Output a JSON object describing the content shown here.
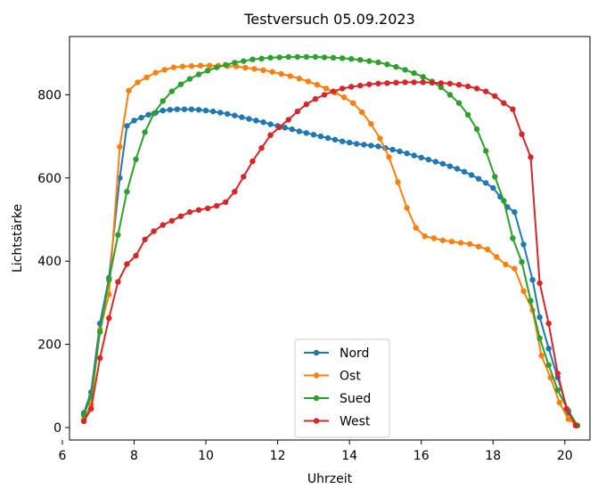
{
  "chart_data": {
    "type": "line",
    "title": "Testversuch 05.09.2023",
    "xlabel": "Uhrzeit",
    "ylabel": "Lichtstärke",
    "xlim": [
      6.2,
      20.7
    ],
    "ylim": [
      -30,
      940
    ],
    "xticks": [
      6,
      8,
      10,
      12,
      14,
      16,
      18,
      20
    ],
    "yticks": [
      0,
      200,
      400,
      600,
      800
    ],
    "grid": false,
    "legend": {
      "placement": "bottom-center"
    },
    "series": [
      {
        "name": "Nord",
        "color": "#1f77b4",
        "points": [
          [
            6.6,
            35
          ],
          [
            6.8,
            85
          ],
          [
            7.05,
            250
          ],
          [
            7.3,
            360
          ],
          [
            7.6,
            600
          ],
          [
            7.8,
            725
          ],
          [
            8.0,
            738
          ],
          [
            8.2,
            745
          ],
          [
            8.4,
            752
          ],
          [
            8.6,
            757
          ],
          [
            8.8,
            762
          ],
          [
            9.0,
            764
          ],
          [
            9.2,
            765
          ],
          [
            9.4,
            765
          ],
          [
            9.6,
            765
          ],
          [
            9.8,
            764
          ],
          [
            10.0,
            762
          ],
          [
            10.2,
            760
          ],
          [
            10.4,
            757
          ],
          [
            10.6,
            754
          ],
          [
            10.8,
            750
          ],
          [
            11.0,
            746
          ],
          [
            11.2,
            742
          ],
          [
            11.4,
            738
          ],
          [
            11.6,
            734
          ],
          [
            11.8,
            729
          ],
          [
            12.0,
            725
          ],
          [
            12.2,
            721
          ],
          [
            12.4,
            717
          ],
          [
            12.6,
            712
          ],
          [
            12.8,
            708
          ],
          [
            13.0,
            704
          ],
          [
            13.2,
            700
          ],
          [
            13.4,
            696
          ],
          [
            13.6,
            692
          ],
          [
            13.8,
            688
          ],
          [
            14.0,
            685
          ],
          [
            14.2,
            682
          ],
          [
            14.4,
            680
          ],
          [
            14.6,
            678
          ],
          [
            14.8,
            676
          ],
          [
            15.0,
            672
          ],
          [
            15.2,
            668
          ],
          [
            15.4,
            664
          ],
          [
            15.6,
            659
          ],
          [
            15.8,
            654
          ],
          [
            16.0,
            649
          ],
          [
            16.2,
            644
          ],
          [
            16.4,
            639
          ],
          [
            16.6,
            634
          ],
          [
            16.8,
            628
          ],
          [
            17.0,
            622
          ],
          [
            17.2,
            615
          ],
          [
            17.4,
            607
          ],
          [
            17.6,
            598
          ],
          [
            17.8,
            588
          ],
          [
            18.0,
            576
          ],
          [
            18.2,
            555
          ],
          [
            18.4,
            530
          ],
          [
            18.6,
            518
          ],
          [
            18.85,
            440
          ],
          [
            19.1,
            355
          ],
          [
            19.3,
            265
          ],
          [
            19.55,
            190
          ],
          [
            19.8,
            120
          ],
          [
            20.1,
            35
          ],
          [
            20.35,
            5
          ]
        ]
      },
      {
        "name": "Ost",
        "color": "#ff7f0e",
        "points": [
          [
            6.6,
            20
          ],
          [
            6.8,
            55
          ],
          [
            7.05,
            235
          ],
          [
            7.3,
            320
          ],
          [
            7.6,
            675
          ],
          [
            7.85,
            810
          ],
          [
            8.1,
            830
          ],
          [
            8.35,
            842
          ],
          [
            8.6,
            853
          ],
          [
            8.85,
            860
          ],
          [
            9.1,
            866
          ],
          [
            9.35,
            868
          ],
          [
            9.6,
            869
          ],
          [
            9.85,
            870
          ],
          [
            10.1,
            870
          ],
          [
            10.35,
            870
          ],
          [
            10.6,
            869
          ],
          [
            10.85,
            868
          ],
          [
            11.1,
            865
          ],
          [
            11.35,
            862
          ],
          [
            11.6,
            859
          ],
          [
            11.85,
            855
          ],
          [
            12.1,
            850
          ],
          [
            12.35,
            845
          ],
          [
            12.6,
            839
          ],
          [
            12.85,
            832
          ],
          [
            13.1,
            824
          ],
          [
            13.35,
            815
          ],
          [
            13.6,
            805
          ],
          [
            13.85,
            794
          ],
          [
            14.1,
            780
          ],
          [
            14.35,
            758
          ],
          [
            14.6,
            730
          ],
          [
            14.85,
            695
          ],
          [
            15.1,
            650
          ],
          [
            15.35,
            590
          ],
          [
            15.6,
            528
          ],
          [
            15.85,
            480
          ],
          [
            16.1,
            460
          ],
          [
            16.35,
            455
          ],
          [
            16.6,
            450
          ],
          [
            16.85,
            447
          ],
          [
            17.1,
            444
          ],
          [
            17.35,
            441
          ],
          [
            17.6,
            435
          ],
          [
            17.85,
            428
          ],
          [
            18.1,
            410
          ],
          [
            18.35,
            392
          ],
          [
            18.6,
            382
          ],
          [
            18.85,
            328
          ],
          [
            19.1,
            282
          ],
          [
            19.35,
            173
          ],
          [
            19.6,
            120
          ],
          [
            19.85,
            60
          ],
          [
            20.1,
            20
          ],
          [
            20.35,
            5
          ]
        ]
      },
      {
        "name": "Sued",
        "color": "#2ca02c",
        "points": [
          [
            6.6,
            30
          ],
          [
            6.8,
            75
          ],
          [
            7.05,
            230
          ],
          [
            7.3,
            355
          ],
          [
            7.55,
            463
          ],
          [
            7.8,
            567
          ],
          [
            8.05,
            645
          ],
          [
            8.3,
            710
          ],
          [
            8.55,
            755
          ],
          [
            8.8,
            785
          ],
          [
            9.05,
            808
          ],
          [
            9.3,
            825
          ],
          [
            9.55,
            838
          ],
          [
            9.8,
            849
          ],
          [
            10.05,
            858
          ],
          [
            10.3,
            866
          ],
          [
            10.55,
            872
          ],
          [
            10.8,
            877
          ],
          [
            11.05,
            881
          ],
          [
            11.3,
            885
          ],
          [
            11.55,
            887
          ],
          [
            11.8,
            889
          ],
          [
            12.05,
            890
          ],
          [
            12.3,
            891
          ],
          [
            12.55,
            891
          ],
          [
            12.8,
            891
          ],
          [
            13.05,
            891
          ],
          [
            13.3,
            890
          ],
          [
            13.55,
            889
          ],
          [
            13.8,
            888
          ],
          [
            14.05,
            886
          ],
          [
            14.3,
            884
          ],
          [
            14.55,
            881
          ],
          [
            14.8,
            878
          ],
          [
            15.05,
            873
          ],
          [
            15.3,
            867
          ],
          [
            15.55,
            860
          ],
          [
            15.8,
            852
          ],
          [
            16.05,
            843
          ],
          [
            16.3,
            832
          ],
          [
            16.55,
            818
          ],
          [
            16.8,
            800
          ],
          [
            17.05,
            780
          ],
          [
            17.3,
            752
          ],
          [
            17.55,
            717
          ],
          [
            17.8,
            665
          ],
          [
            18.05,
            603
          ],
          [
            18.3,
            545
          ],
          [
            18.55,
            455
          ],
          [
            18.8,
            398
          ],
          [
            19.05,
            305
          ],
          [
            19.3,
            215
          ],
          [
            19.55,
            150
          ],
          [
            19.8,
            90
          ],
          [
            20.1,
            40
          ],
          [
            20.35,
            5
          ]
        ]
      },
      {
        "name": "West",
        "color": "#d62728",
        "points": [
          [
            6.6,
            15
          ],
          [
            6.8,
            45
          ],
          [
            7.05,
            167
          ],
          [
            7.3,
            263
          ],
          [
            7.55,
            350
          ],
          [
            7.8,
            393
          ],
          [
            8.05,
            413
          ],
          [
            8.3,
            452
          ],
          [
            8.55,
            472
          ],
          [
            8.8,
            487
          ],
          [
            9.05,
            497
          ],
          [
            9.3,
            508
          ],
          [
            9.55,
            518
          ],
          [
            9.8,
            523
          ],
          [
            10.05,
            527
          ],
          [
            10.3,
            533
          ],
          [
            10.55,
            542
          ],
          [
            10.8,
            567
          ],
          [
            11.05,
            603
          ],
          [
            11.3,
            640
          ],
          [
            11.55,
            672
          ],
          [
            11.8,
            703
          ],
          [
            12.05,
            722
          ],
          [
            12.3,
            740
          ],
          [
            12.55,
            760
          ],
          [
            12.8,
            777
          ],
          [
            13.05,
            790
          ],
          [
            13.3,
            800
          ],
          [
            13.55,
            808
          ],
          [
            13.8,
            815
          ],
          [
            14.05,
            819
          ],
          [
            14.3,
            822
          ],
          [
            14.55,
            825
          ],
          [
            14.8,
            827
          ],
          [
            15.05,
            828
          ],
          [
            15.3,
            829
          ],
          [
            15.55,
            830
          ],
          [
            15.8,
            830
          ],
          [
            16.05,
            830
          ],
          [
            16.3,
            829
          ],
          [
            16.55,
            828
          ],
          [
            16.8,
            827
          ],
          [
            17.05,
            824
          ],
          [
            17.3,
            820
          ],
          [
            17.55,
            815
          ],
          [
            17.8,
            808
          ],
          [
            18.05,
            797
          ],
          [
            18.3,
            780
          ],
          [
            18.55,
            765
          ],
          [
            18.8,
            705
          ],
          [
            19.05,
            650
          ],
          [
            19.3,
            347
          ],
          [
            19.55,
            250
          ],
          [
            19.8,
            130
          ],
          [
            20.05,
            45
          ],
          [
            20.3,
            5
          ]
        ]
      }
    ]
  }
}
